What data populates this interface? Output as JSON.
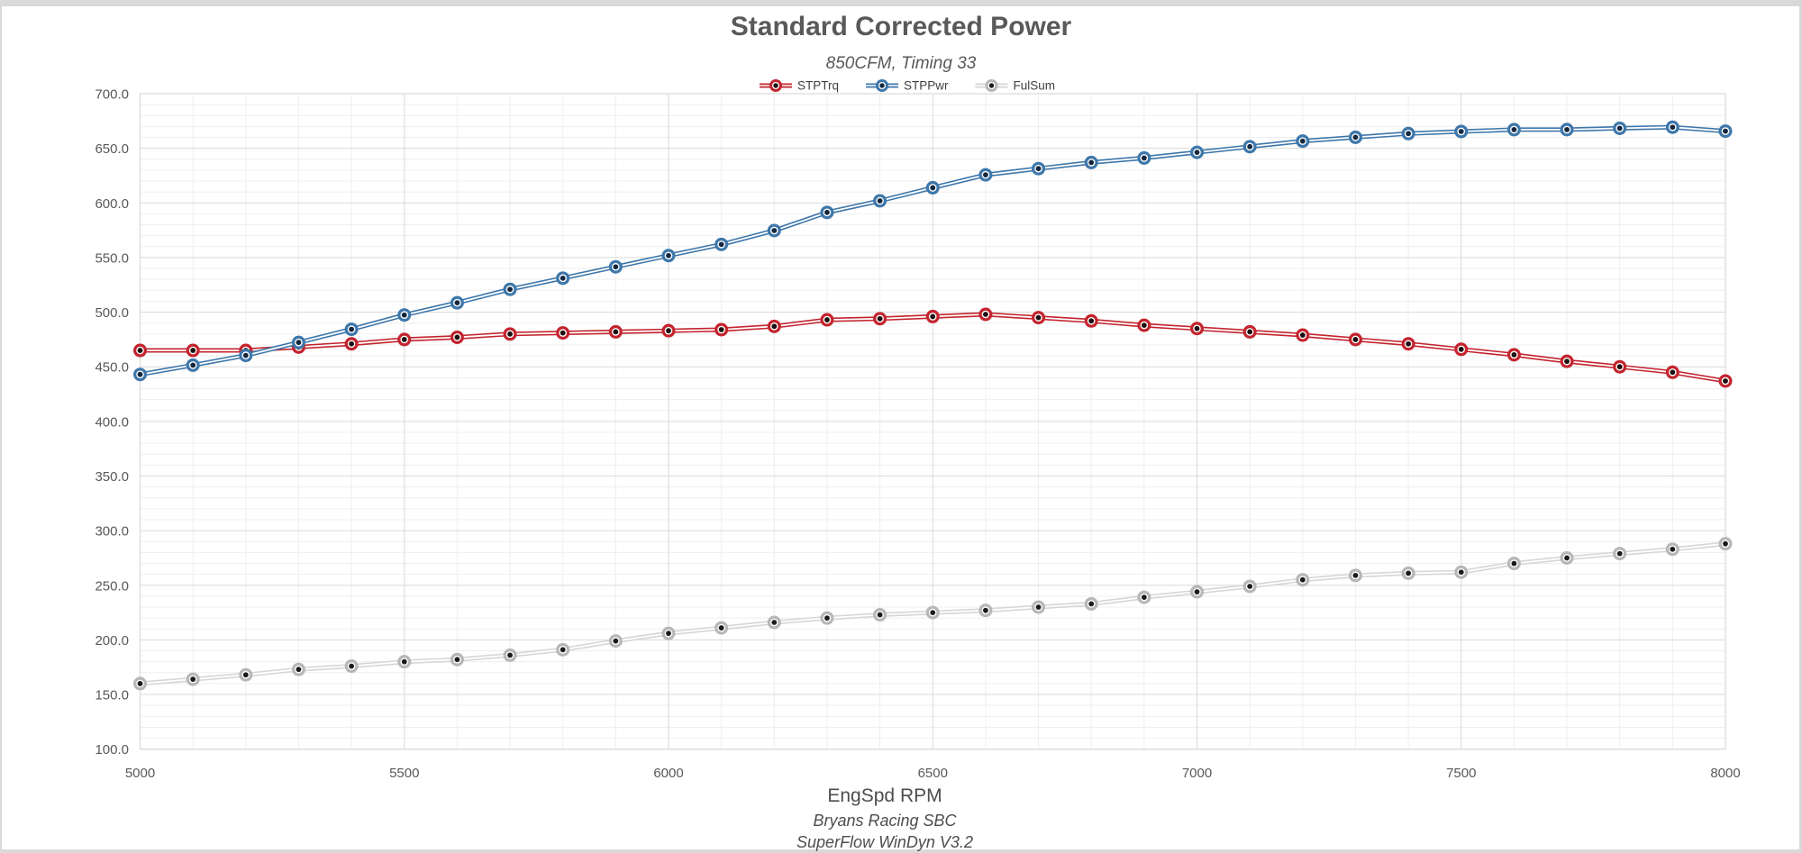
{
  "header": {
    "title": "Standard Corrected Power",
    "subtitle": "850CFM, Timing 33"
  },
  "footer": {
    "axis_title": "EngSpd RPM",
    "line1": "Bryans Racing SBC",
    "line2": "SuperFlow WinDyn V3.2"
  },
  "colors": {
    "red_series": "#c3242e",
    "blue_series": "#3e77aa",
    "gray_series": "#d6d6d6",
    "red_marker_center": "#1c0f10",
    "blue_marker_center": "#14273f",
    "gray_marker_ring": "#b7b7b7",
    "gray_marker_center": "#1a1a1a",
    "major_grid": "#d9d9d9",
    "minor_grid": "#efefef",
    "frame": "#d9d9d9",
    "text": "#595959"
  },
  "chart_data": {
    "type": "line",
    "title": "Standard Corrected Power",
    "subtitle": "850CFM, Timing 33",
    "xlabel": "EngSpd RPM",
    "ylabel": "",
    "xlim": [
      5000,
      8000
    ],
    "ylim": [
      100,
      700
    ],
    "x_major_step": 500,
    "x_minor_step": 100,
    "y_major_step": 50,
    "y_minor_step": 10,
    "grid": true,
    "legend_position": "top",
    "x_tick_labels": [
      "5000",
      "5500",
      "6000",
      "6500",
      "7000",
      "7500",
      "8000"
    ],
    "y_tick_labels": [
      "700.0",
      "650.0",
      "600.0",
      "550.0",
      "500.0",
      "450.0",
      "400.0",
      "350.0",
      "300.0",
      "250.0",
      "200.0",
      "150.0",
      "100.0"
    ],
    "x": [
      5000,
      5100,
      5200,
      5300,
      5400,
      5500,
      5600,
      5700,
      5800,
      5900,
      6000,
      6100,
      6200,
      6300,
      6400,
      6500,
      6600,
      6700,
      6800,
      6900,
      7000,
      7100,
      7200,
      7300,
      7400,
      7500,
      7600,
      7700,
      7800,
      7900,
      8000
    ],
    "series": [
      {
        "name": "STPTrq",
        "color": "#c3242e",
        "marker_ring": "#c3242e",
        "marker_center": "#1c0f10",
        "values": [
          465,
          465,
          465,
          468,
          471,
          475,
          477,
          480,
          481,
          482,
          483,
          484,
          487,
          493,
          494,
          496,
          498,
          495,
          492,
          488,
          485,
          482,
          479,
          475,
          471,
          466,
          461,
          455,
          450,
          445,
          437
        ]
      },
      {
        "name": "STPPwr",
        "color": "#3e77aa",
        "marker_ring": "#3e77aa",
        "marker_center": "#14273f",
        "values": [
          443.0,
          451.5,
          460.4,
          472.3,
          484.3,
          497.4,
          508.6,
          520.9,
          531.1,
          541.5,
          551.8,
          562.0,
          574.7,
          591.3,
          601.9,
          613.9,
          625.7,
          631.4,
          637.0,
          641.1,
          646.3,
          651.5,
          656.6,
          660.1,
          663.5,
          665.4,
          667.1,
          667.1,
          668.3,
          669.3,
          665.7
        ]
      },
      {
        "name": "FulSum",
        "color": "#d6d6d6",
        "marker_ring": "#b7b7b7",
        "marker_center": "#1a1a1a",
        "values": [
          160,
          164,
          168,
          173,
          176,
          180,
          182,
          186,
          191,
          199,
          206,
          211,
          216,
          220,
          223,
          225,
          227,
          230,
          233,
          239,
          244,
          249,
          255,
          259,
          261,
          262,
          270,
          275,
          279,
          283,
          288
        ]
      }
    ]
  }
}
